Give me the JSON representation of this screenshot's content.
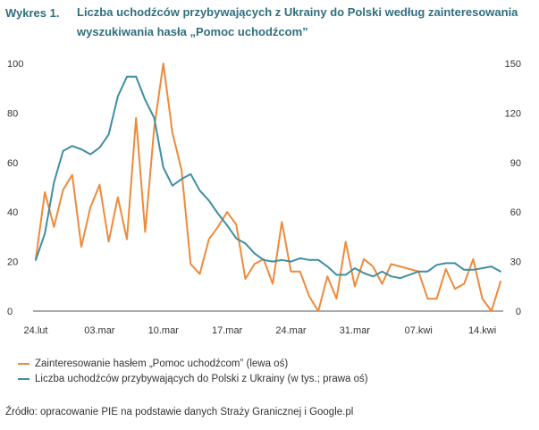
{
  "figure": {
    "label": "Wykres 1.",
    "title": "Liczba uchodźców przybywających z Ukrainy do Polski według zainteresowania wyszukiwania hasła „Pomoc uchodźcom”"
  },
  "source": "Źródło: opracowanie PIE na podstawie danych Straży Granicznej i Google.pl",
  "chart_data": {
    "type": "line",
    "title": "Liczba uchodźców przybywających z Ukrainy do Polski według zainteresowania wyszukiwania hasła „Pomoc uchodźcom”",
    "x_tick_labels": [
      "24.lut",
      "03.mar",
      "10.mar",
      "17.mar",
      "24.mar",
      "31.mar",
      "07.kwi",
      "14.kwi"
    ],
    "x_day_range": [
      0,
      49
    ],
    "left_axis": {
      "ylim": [
        0,
        100
      ],
      "ticks": [
        0,
        20,
        40,
        60,
        80,
        100
      ]
    },
    "right_axis": {
      "ylim": [
        0,
        150
      ],
      "ticks": [
        0,
        30,
        60,
        90,
        120,
        150
      ]
    },
    "grid": false,
    "legend_position": "bottom",
    "series": [
      {
        "name": "Zainteresowanie hasłem „Pomoc uchodźcom” (lewa oś)",
        "axis": "left",
        "color": "#ee8a3c",
        "values": [
          21,
          48,
          34,
          49,
          55,
          26,
          42,
          51,
          28,
          46,
          29,
          78,
          32,
          74,
          100,
          72,
          57,
          19,
          15,
          29,
          34,
          40,
          35,
          13,
          19,
          21,
          11,
          36,
          16,
          16,
          6,
          0,
          14,
          5,
          28,
          10,
          21,
          18,
          11,
          19,
          18,
          17,
          16,
          5,
          5,
          17,
          9,
          11,
          21,
          5,
          0,
          12
        ]
      },
      {
        "name": "Liczba uchodźców przybywających do Polski z Ukrainy (w tys.; prawa oś)",
        "axis": "right",
        "color": "#3f8ea2",
        "values": [
          31,
          47,
          78,
          97,
          100,
          98,
          95,
          99,
          107,
          130,
          142,
          142,
          128,
          117,
          87,
          76,
          80,
          83,
          73,
          67,
          59,
          52,
          44,
          41,
          35,
          31,
          30,
          31,
          30,
          32,
          31,
          31,
          27,
          22,
          22,
          26,
          23,
          21,
          24,
          21,
          20,
          22,
          24,
          24,
          28,
          29,
          29,
          25,
          25,
          26,
          27,
          24
        ]
      }
    ]
  }
}
